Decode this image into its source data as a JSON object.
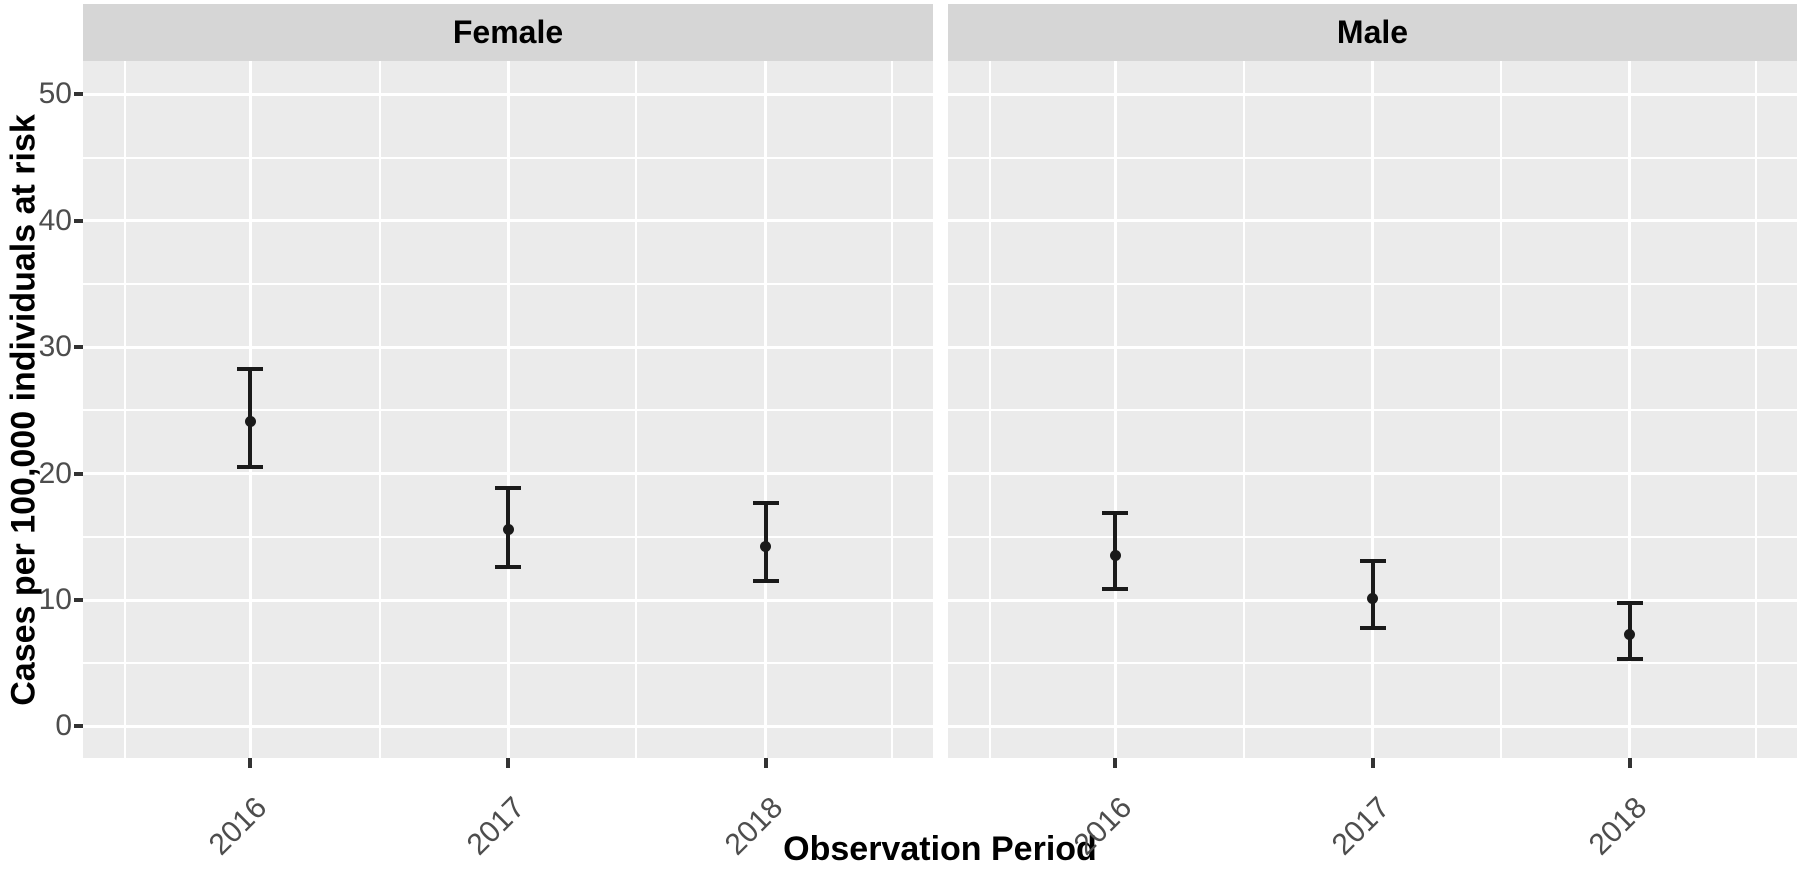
{
  "chart_data": {
    "type": "scatter",
    "subtype": "point estimates with error bars (pointrange), faceted by sex",
    "title": "",
    "xlabel": "Observation Period",
    "ylabel": "Cases per 100,000 individuals at risk",
    "categories": [
      "2016",
      "2017",
      "2018"
    ],
    "y_major_ticks": [
      0,
      10,
      20,
      30,
      40,
      50
    ],
    "y_minor_ticks": [
      5,
      15,
      25,
      35,
      45
    ],
    "y_tick_labels": [
      "0",
      "10",
      "20",
      "30",
      "40",
      "50"
    ],
    "ylim": [
      -2.5,
      52.65
    ],
    "grid": "major and minor, white on gray panel",
    "legend": "none",
    "facets": [
      {
        "label": "Female",
        "points": [
          {
            "x": "2016",
            "y": 24.1,
            "ymin": 20.5,
            "ymax": 28.3
          },
          {
            "x": "2017",
            "y": 15.6,
            "ymin": 12.6,
            "ymax": 18.9
          },
          {
            "x": "2018",
            "y": 14.2,
            "ymin": 11.5,
            "ymax": 17.7
          }
        ]
      },
      {
        "label": "Male",
        "points": [
          {
            "x": "2016",
            "y": 13.5,
            "ymin": 10.9,
            "ymax": 16.9
          },
          {
            "x": "2017",
            "y": 10.1,
            "ymin": 7.8,
            "ymax": 13.1
          },
          {
            "x": "2018",
            "y": 7.3,
            "ymin": 5.3,
            "ymax": 9.8
          }
        ]
      }
    ],
    "colors": {
      "panel_bg": "#ebebeb",
      "strip_bg": "#d6d6d6",
      "grid": "#ffffff",
      "tick_label": "#4d4d4d",
      "tick_mark": "#333333",
      "point": "#1a1a1a",
      "axis_title": "#000000",
      "strip_text": "#000000"
    }
  }
}
